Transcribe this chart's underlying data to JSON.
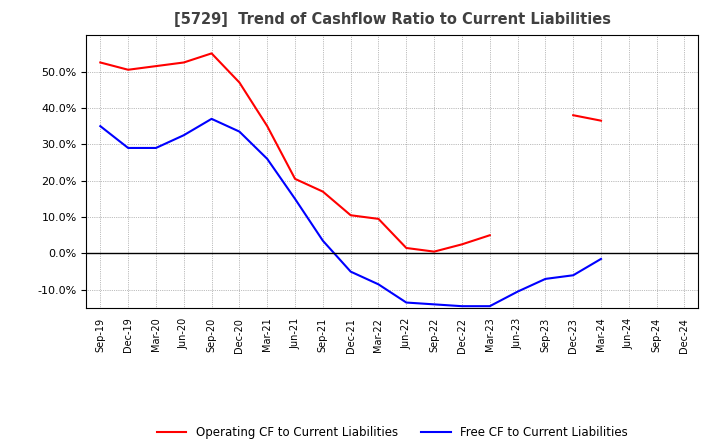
{
  "title": "[5729]  Trend of Cashflow Ratio to Current Liabilities",
  "x_labels": [
    "Sep-19",
    "Dec-19",
    "Mar-20",
    "Jun-20",
    "Sep-20",
    "Dec-20",
    "Mar-21",
    "Jun-21",
    "Sep-21",
    "Dec-21",
    "Mar-22",
    "Jun-22",
    "Sep-22",
    "Dec-22",
    "Mar-23",
    "Jun-23",
    "Sep-23",
    "Dec-23",
    "Mar-24",
    "Jun-24",
    "Sep-24",
    "Dec-24"
  ],
  "operating_cf": [
    52.5,
    50.5,
    51.5,
    52.5,
    55.0,
    47.0,
    35.0,
    20.5,
    17.0,
    10.5,
    9.5,
    1.5,
    0.5,
    2.5,
    5.0,
    null,
    null,
    null,
    null,
    null,
    null,
    null
  ],
  "operating_cf_2": [
    null,
    null,
    null,
    null,
    null,
    null,
    null,
    null,
    null,
    null,
    null,
    null,
    null,
    null,
    null,
    null,
    null,
    38.0,
    36.5,
    null,
    null,
    null
  ],
  "free_cf": [
    35.0,
    29.0,
    29.0,
    32.5,
    37.0,
    33.5,
    26.0,
    15.0,
    3.5,
    -5.0,
    -8.5,
    -13.5,
    -14.0,
    -14.5,
    -14.5,
    -10.5,
    -7.0,
    -6.0,
    -1.5,
    null,
    null,
    null
  ],
  "ylim": [
    -15,
    60
  ],
  "yticks": [
    -10.0,
    0.0,
    10.0,
    20.0,
    30.0,
    40.0,
    50.0
  ],
  "operating_color": "#ff0000",
  "free_color": "#0000ff",
  "background_color": "#ffffff",
  "grid_color": "#808080",
  "legend_operating": "Operating CF to Current Liabilities",
  "legend_free": "Free CF to Current Liabilities",
  "title_color": "#404040"
}
